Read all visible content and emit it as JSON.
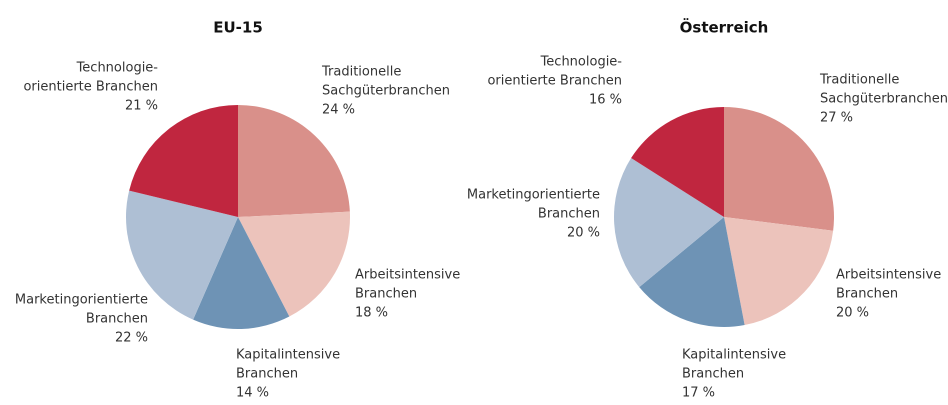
{
  "chart_data": [
    {
      "type": "pie",
      "title": "EU-15",
      "categories": [
        [
          "Traditionelle",
          "Sachgüterbranchen"
        ],
        [
          "Arbeitsintensive",
          "Branchen"
        ],
        [
          "Kapitalintensive",
          "Branchen"
        ],
        [
          "Marketingorientierte",
          "Branchen"
        ],
        [
          "Technologie-",
          "orientierte Branchen"
        ]
      ],
      "values": [
        24,
        18,
        14,
        22,
        21
      ],
      "value_labels": [
        "24 %",
        "18 %",
        "14 %",
        "22 %",
        "21 %"
      ],
      "colors": [
        "#d9908a",
        "#ecc3bb",
        "#6e93b5",
        "#aebfd4",
        "#c0263f"
      ]
    },
    {
      "type": "pie",
      "title": "Österreich",
      "categories": [
        [
          "Traditionelle",
          "Sachgüterbranchen"
        ],
        [
          "Arbeitsintensive",
          "Branchen"
        ],
        [
          "Kapitalintensive",
          "Branchen"
        ],
        [
          "Marketingorientierte",
          "Branchen"
        ],
        [
          "Technologie-",
          "orientierte Branchen"
        ]
      ],
      "values": [
        27,
        20,
        17,
        20,
        16
      ],
      "value_labels": [
        "27 %",
        "20 %",
        "17 %",
        "20 %",
        "16 %"
      ],
      "colors": [
        "#d9908a",
        "#ecc3bb",
        "#6e93b5",
        "#aebfd4",
        "#c0263f"
      ]
    }
  ]
}
